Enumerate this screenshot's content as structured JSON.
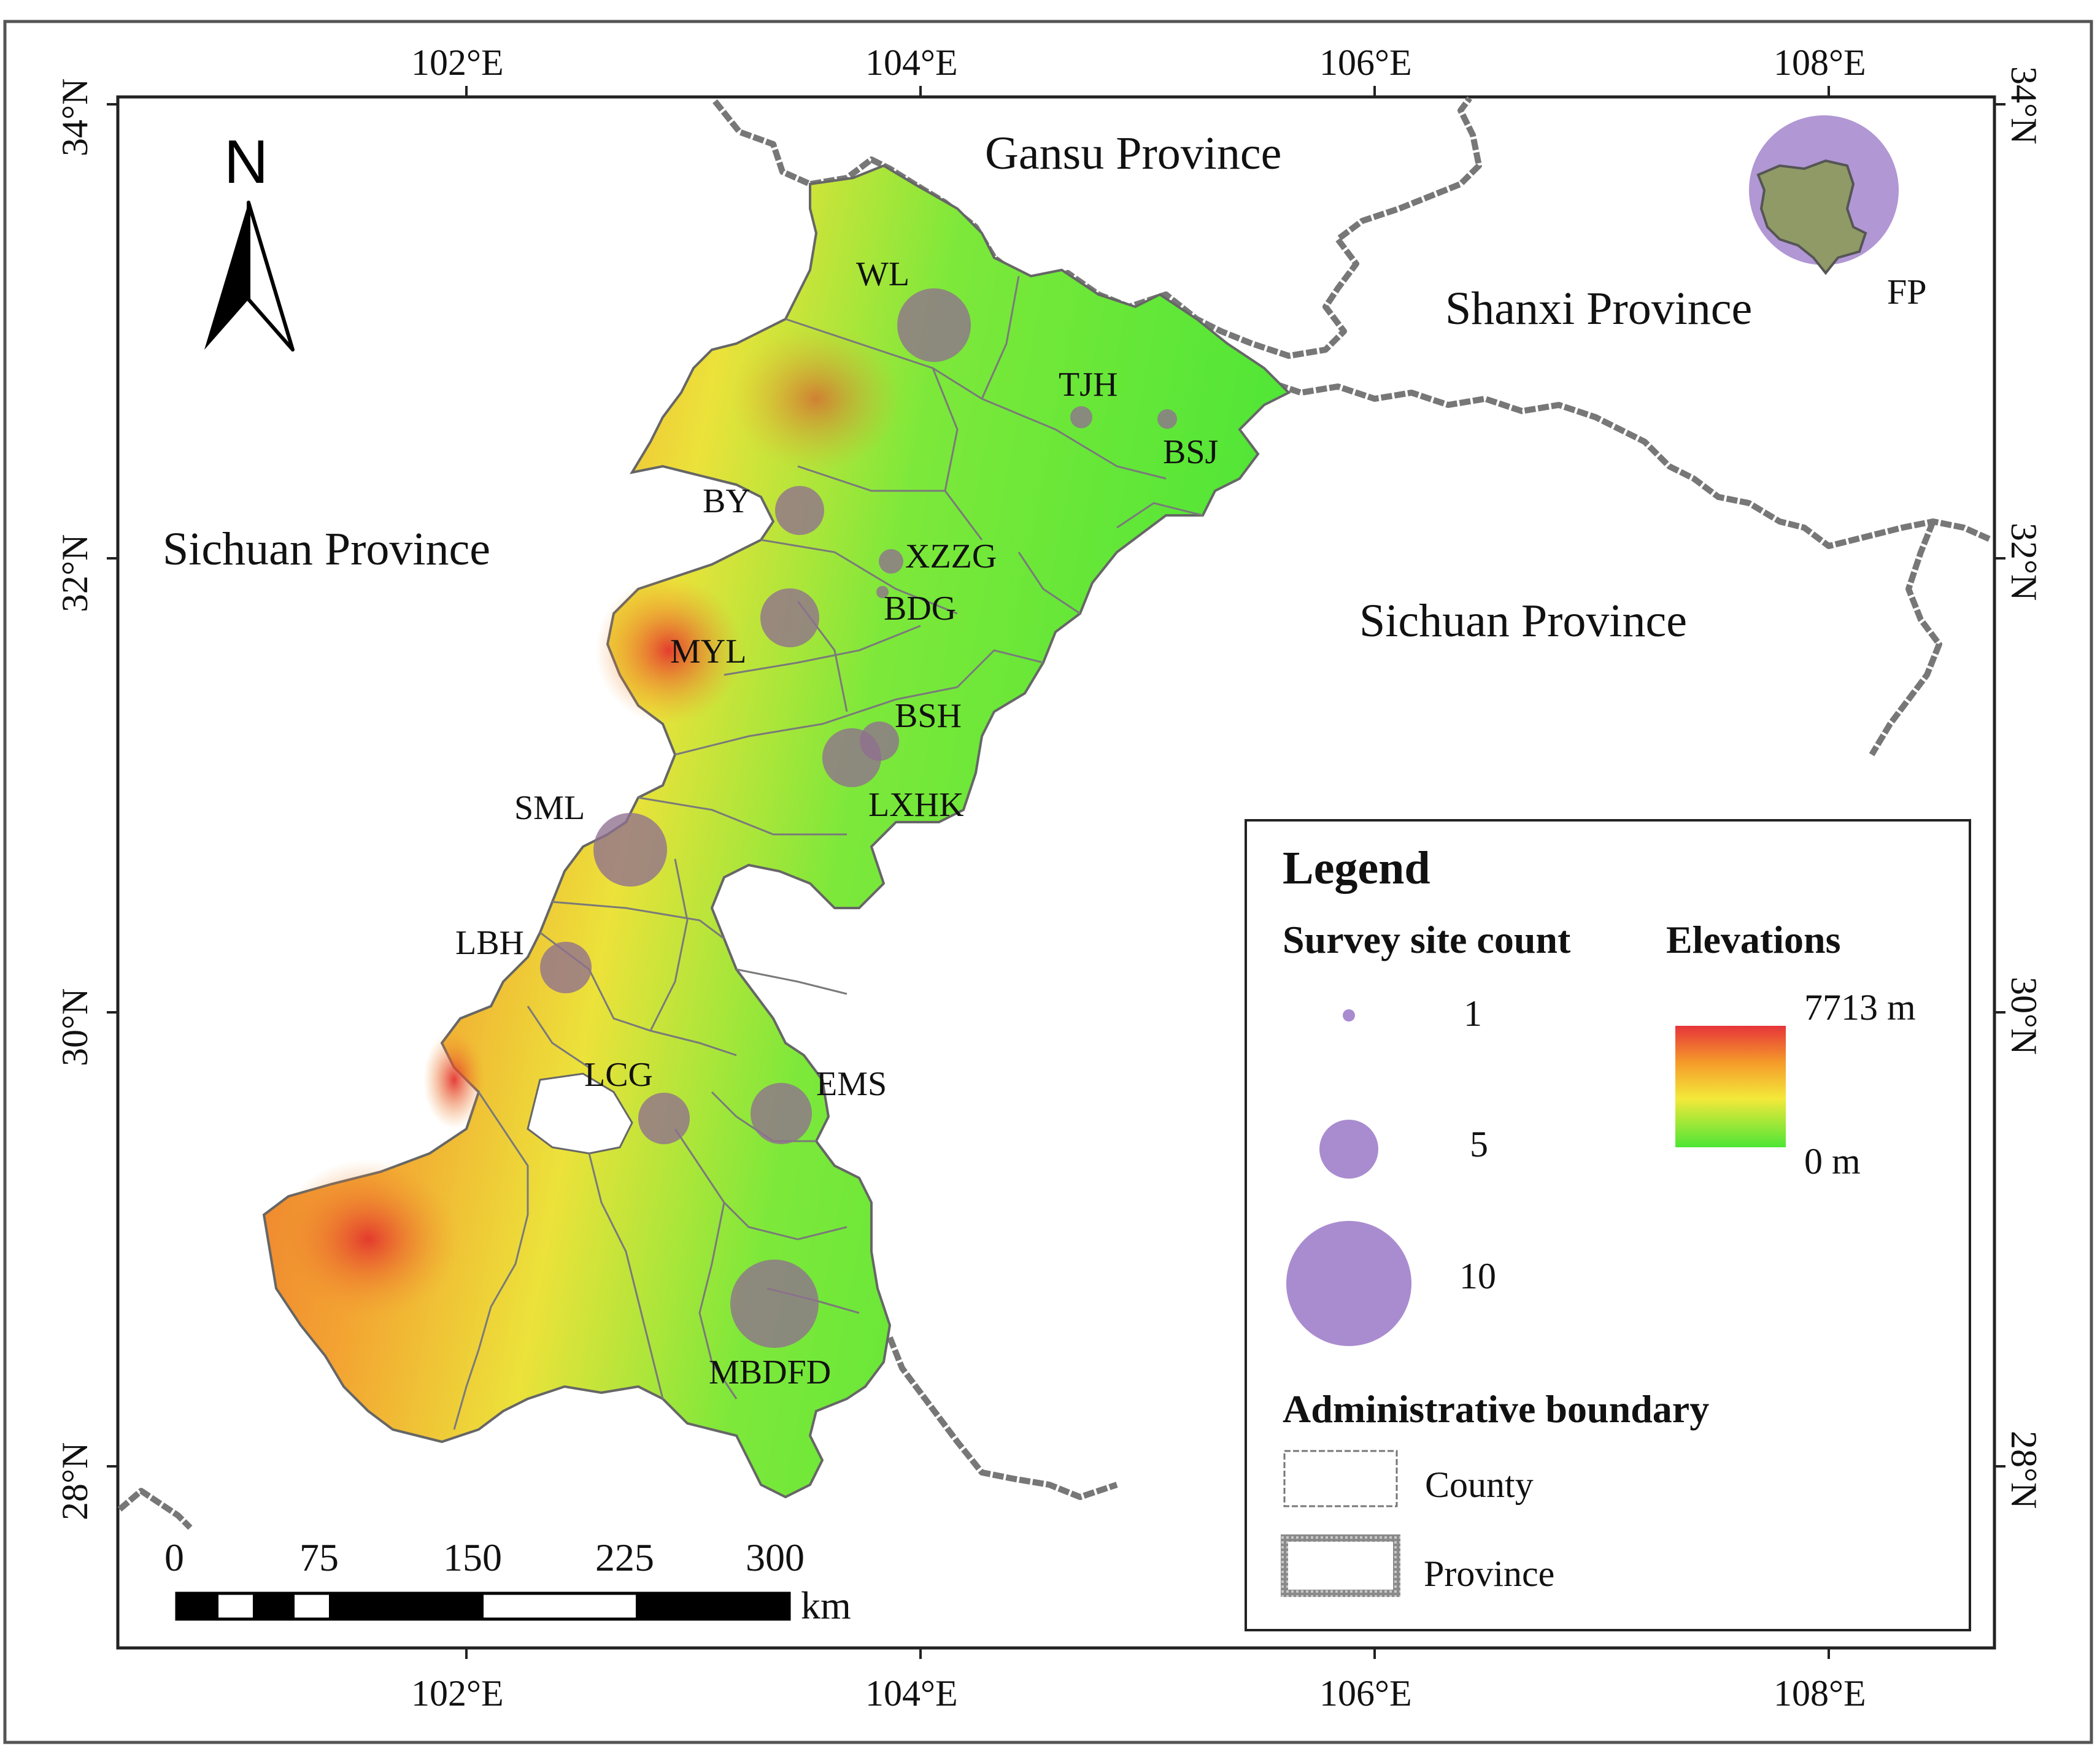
{
  "map": {
    "regions": {
      "gansu": "Gansu Province",
      "shanxi": "Shanxi Province",
      "sichuan_west": "Sichuan Province",
      "sichuan_east": "Sichuan Province"
    },
    "north_label": "N",
    "axes": {
      "top_ticks": [
        "102°E",
        "104°E",
        "106°E",
        "108°E"
      ],
      "bottom_ticks": [
        "102°E",
        "104°E",
        "106°E",
        "108°E"
      ],
      "left_ticks": [
        "34°N",
        "32°N",
        "30°N",
        "28°N"
      ],
      "right_ticks": [
        "34°N",
        "32°N",
        "30°N",
        "28°N"
      ]
    },
    "sites": [
      {
        "code": "WL",
        "count": 6
      },
      {
        "code": "TJH",
        "count": 1
      },
      {
        "code": "BSJ",
        "count": 1
      },
      {
        "code": "BY",
        "count": 3
      },
      {
        "code": "XZZG",
        "count": 1
      },
      {
        "code": "BDG",
        "count": 1
      },
      {
        "code": "MYL",
        "count": 4
      },
      {
        "code": "BSH",
        "count": 2
      },
      {
        "code": "LXHK",
        "count": 5
      },
      {
        "code": "SML",
        "count": 6
      },
      {
        "code": "LBH",
        "count": 3
      },
      {
        "code": "LCG",
        "count": 3
      },
      {
        "code": "EMS",
        "count": 4
      },
      {
        "code": "MBDFD",
        "count": 8
      },
      {
        "code": "FP",
        "count": 10
      }
    ],
    "scalebar": {
      "ticks": [
        "0",
        "75",
        "150",
        "225",
        "300"
      ],
      "unit": "km"
    }
  },
  "legend": {
    "title": "Legend",
    "site_count_title": "Survey site count",
    "site_counts": [
      "1",
      "5",
      "10"
    ],
    "elevations_title": "Elevations",
    "elev_max": "7713 m",
    "elev_min": "0 m",
    "admin_title": "Administrative boundary",
    "county_label": "County",
    "province_label": "Province"
  },
  "colors": {
    "circle": "#a98ccf",
    "elev_high": "#e6343a",
    "elev_mid_high": "#f59a2a",
    "elev_mid": "#f4e93a",
    "elev_low": "#4ee636"
  }
}
